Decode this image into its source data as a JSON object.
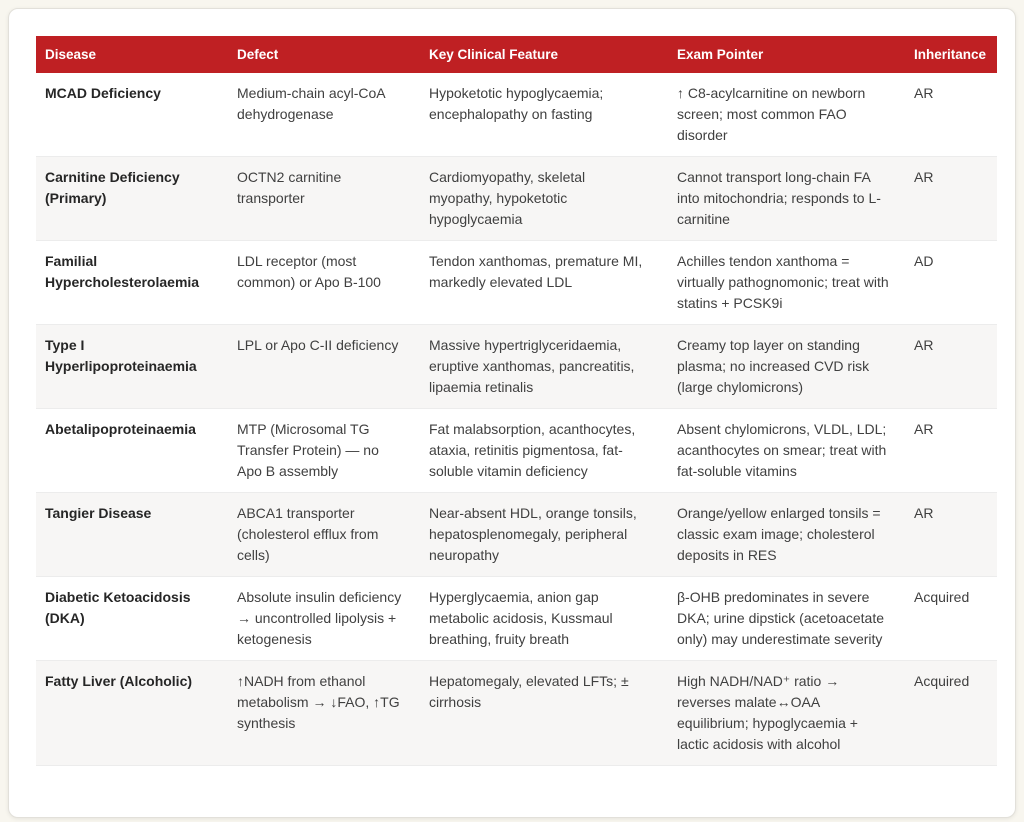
{
  "page": {
    "background_color": "#f8f6ef",
    "card_background": "#ffffff"
  },
  "table": {
    "header_bg": "#bf2023",
    "header_text_color": "#ffffff",
    "alt_row_bg": "#f7f6f5",
    "columns": [
      {
        "key": "disease",
        "label": "Disease"
      },
      {
        "key": "defect",
        "label": "Defect"
      },
      {
        "key": "feature",
        "label": "Key Clinical Feature"
      },
      {
        "key": "pointer",
        "label": "Exam Pointer"
      },
      {
        "key": "inheritance",
        "label": "Inheritance"
      }
    ],
    "rows": [
      {
        "disease": "MCAD Deficiency",
        "defect": "Medium-chain acyl-CoA dehydrogenase",
        "feature": "Hypoketotic hypoglycaemia; encephalopathy on fasting",
        "pointer": "↑ C8-acylcarnitine on newborn screen; most common FAO disorder",
        "inheritance": "AR"
      },
      {
        "disease": "Carnitine Deficiency (Primary)",
        "defect": "OCTN2 carnitine transporter",
        "feature": "Cardiomyopathy, skeletal myopathy, hypoketotic hypoglycaemia",
        "pointer": "Cannot transport long-chain FA into mitochondria; responds to L-carnitine",
        "inheritance": "AR"
      },
      {
        "disease": "Familial Hypercholesterolaemia",
        "defect": "LDL receptor (most common) or Apo B-100",
        "feature": "Tendon xanthomas, premature MI, markedly elevated LDL",
        "pointer": "Achilles tendon xanthoma = virtually pathognomonic; treat with statins + PCSK9i",
        "inheritance": "AD"
      },
      {
        "disease": "Type I Hyperlipoproteinaemia",
        "defect": "LPL or Apo C-II deficiency",
        "feature": "Massive hypertriglyceridaemia, eruptive xanthomas, pancreatitis, lipaemia retinalis",
        "pointer": "Creamy top layer on standing plasma; no increased CVD risk (large chylomicrons)",
        "inheritance": "AR"
      },
      {
        "disease": "Abetalipoproteinaemia",
        "defect": "MTP (Microsomal TG Transfer Protein) — no Apo B assembly",
        "feature": "Fat malabsorption, acanthocytes, ataxia, retinitis pigmentosa, fat-soluble vitamin deficiency",
        "pointer": "Absent chylomicrons, VLDL, LDL; acanthocytes on smear; treat with fat-soluble vitamins",
        "inheritance": "AR"
      },
      {
        "disease": "Tangier Disease",
        "defect": "ABCA1 transporter (cholesterol efflux from cells)",
        "feature": "Near-absent HDL, orange tonsils, hepatosplenomegaly, peripheral neuropathy",
        "pointer": "Orange/yellow enlarged tonsils = classic exam image; cholesterol deposits in RES",
        "inheritance": "AR"
      },
      {
        "disease": "Diabetic Ketoacidosis (DKA)",
        "defect": "Absolute insulin deficiency → uncontrolled lipolysis + ketogenesis",
        "feature": "Hyperglycaemia, anion gap metabolic acidosis, Kussmaul breathing, fruity breath",
        "pointer": "β-OHB predominates in severe DKA; urine dipstick (acetoacetate only) may underestimate severity",
        "inheritance": "Acquired"
      },
      {
        "disease": "Fatty Liver (Alcoholic)",
        "defect": "↑NADH from ethanol metabolism → ↓FAO, ↑TG synthesis",
        "feature": "Hepatomegaly, elevated LFTs; ± cirrhosis",
        "pointer": "High NADH/NAD⁺ ratio → reverses malate↔OAA equilibrium; hypoglycaemia + lactic acidosis with alcohol",
        "inheritance": "Acquired"
      }
    ]
  }
}
